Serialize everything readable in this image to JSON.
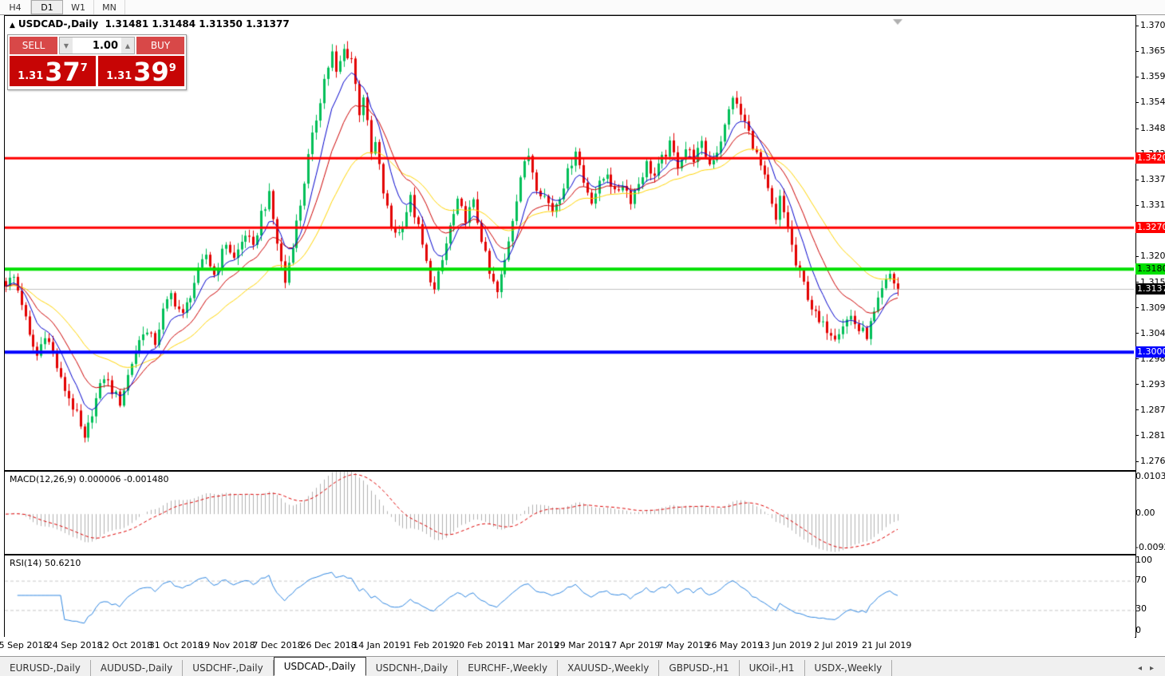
{
  "toolbar": {
    "timeframes": [
      {
        "label": "H4",
        "active": false
      },
      {
        "label": "D1",
        "active": true
      },
      {
        "label": "W1",
        "active": false
      },
      {
        "label": "MN",
        "active": false
      }
    ]
  },
  "header": {
    "collapse_marker": "▲",
    "symbol_title": "USDCAD-,Daily",
    "quotes": "1.31481 1.31484 1.31350 1.31377"
  },
  "trade_panel": {
    "sell_label": "SELL",
    "buy_label": "BUY",
    "volume": "1.00",
    "spinner_down": "▼",
    "spinner_up": "▲",
    "sell_price": {
      "small": "1.31",
      "big": "37",
      "sup": "7"
    },
    "buy_price": {
      "small": "1.31",
      "big": "39",
      "sup": "9"
    }
  },
  "price_axis": {
    "ticks": [
      "1.37085",
      "1.36530",
      "1.35975",
      "1.35420",
      "1.34850",
      "1.34295",
      "1.33740",
      "1.33185",
      "1.32630",
      "1.32075",
      "1.31520",
      "1.30965",
      "1.30410",
      "1.29855",
      "1.29300",
      "1.28745",
      "1.28190",
      "1.27635"
    ],
    "levels": [
      {
        "label": "1.34206",
        "price": 1.34206,
        "color": "#ff0000",
        "text": "#fff",
        "line_width": 3
      },
      {
        "label": "1.32701",
        "price": 1.32701,
        "color": "#ff0000",
        "text": "#fff",
        "line_width": 3
      },
      {
        "label": "1.31801",
        "price": 1.31801,
        "color": "#00e000",
        "text": "#000",
        "line_width": 4
      },
      {
        "label": "1.30004",
        "price": 1.30004,
        "color": "#0000ff",
        "text": "#fff",
        "line_width": 4
      }
    ],
    "current": {
      "label": "1.31377",
      "price": 1.31377,
      "line_color": "#c0c0c0",
      "bg": "#000",
      "text": "#fff"
    }
  },
  "macd_panel": {
    "label": "MACD(12,26,9) 0.000006 -0.001480",
    "axis": [
      {
        "label": "0.010311",
        "value": 0.010311
      },
      {
        "label": "0.00",
        "value": 0
      },
      {
        "label": "-0.009203",
        "value": -0.009203
      }
    ],
    "vmax": 0.011,
    "vmin": -0.0099,
    "histogram_color": "#b0b0b0",
    "signal_color": "#dd0000"
  },
  "rsi_panel": {
    "label": "RSI(14) 50.6210",
    "axis": [
      {
        "label": "100",
        "value": 100
      },
      {
        "label": "70",
        "value": 70
      },
      {
        "label": "30",
        "value": 30
      },
      {
        "label": "0",
        "value": 0
      }
    ],
    "dashed_levels": [
      70,
      30
    ],
    "line_color": "#2f86e0",
    "level_color": "#c8c8c8"
  },
  "date_axis": {
    "labels": [
      "5 Sep 2018",
      "24 Sep 2018",
      "12 Oct 2018",
      "31 Oct 2018",
      "19 Nov 2018",
      "7 Dec 2018",
      "26 Dec 2018",
      "14 Jan 2019",
      "1 Feb 2019",
      "20 Feb 2019",
      "11 Mar 2019",
      "29 Mar 2019",
      "17 Apr 2019",
      "7 May 2019",
      "26 May 2019",
      "13 Jun 2019",
      "2 Jul 2019",
      "21 Jul 2019"
    ]
  },
  "tabs": {
    "items": [
      {
        "label": "EURUSD-,Daily",
        "active": false
      },
      {
        "label": "AUDUSD-,Daily",
        "active": false
      },
      {
        "label": "USDCHF-,Daily",
        "active": false
      },
      {
        "label": "USDCAD-,Daily",
        "active": true
      },
      {
        "label": "USDCNH-,Daily",
        "active": false
      },
      {
        "label": "EURCHF-,Weekly",
        "active": false
      },
      {
        "label": "XAUUSD-,Weekly",
        "active": false
      },
      {
        "label": "GBPUSD-,H1",
        "active": false
      },
      {
        "label": "UKOil-,H1",
        "active": false
      },
      {
        "label": "USDX-,Weekly",
        "active": false
      }
    ],
    "scroll_left": "◂",
    "scroll_right": "▸"
  },
  "chart_data": {
    "type": "candlestick",
    "symbol": "USDCAD-",
    "timeframe": "Daily",
    "last_ohlc": {
      "open": 1.31481,
      "high": 1.31484,
      "low": 1.3135,
      "close": 1.31377
    },
    "bid": 1.31377,
    "ask": 1.31399,
    "last_close": 1.31377,
    "candle_count": 228,
    "price_max_top": 1.37293,
    "price_min_bottom": 1.2748,
    "colors": {
      "up": "#00bf58",
      "down": "#e30000",
      "shift_marker": "#b0b0b0"
    },
    "moving_averages": [
      {
        "period": 8,
        "color": "#0000cc",
        "name": "fast-ema-blue"
      },
      {
        "period": 16,
        "color": "#cc0000",
        "name": "mid-ema-red"
      },
      {
        "period": 34,
        "color": "#ffd400",
        "name": "slow-ema-yellow"
      }
    ],
    "close_waypoints": [
      [
        0,
        1.315
      ],
      [
        2,
        1.3162
      ],
      [
        4,
        1.3108
      ],
      [
        6,
        1.3032
      ],
      [
        8,
        1.2992
      ],
      [
        10,
        1.3042
      ],
      [
        12,
        1.2998
      ],
      [
        14,
        1.2938
      ],
      [
        16,
        1.2902
      ],
      [
        18,
        1.2862
      ],
      [
        20,
        1.2806
      ],
      [
        22,
        1.2872
      ],
      [
        25,
        1.2948
      ],
      [
        27,
        1.2918
      ],
      [
        29,
        1.2892
      ],
      [
        32,
        1.2978
      ],
      [
        35,
        1.3048
      ],
      [
        38,
        1.3022
      ],
      [
        40,
        1.3088
      ],
      [
        42,
        1.3125
      ],
      [
        45,
        1.3078
      ],
      [
        48,
        1.3152
      ],
      [
        51,
        1.3212
      ],
      [
        53,
        1.3168
      ],
      [
        56,
        1.3238
      ],
      [
        58,
        1.3202
      ],
      [
        61,
        1.3258
      ],
      [
        63,
        1.3222
      ],
      [
        65,
        1.3302
      ],
      [
        67,
        1.3338
      ],
      [
        69,
        1.3238
      ],
      [
        71,
        1.3152
      ],
      [
        73,
        1.3238
      ],
      [
        75,
        1.3322
      ],
      [
        77,
        1.3422
      ],
      [
        79,
        1.3508
      ],
      [
        81,
        1.3592
      ],
      [
        83,
        1.3648
      ],
      [
        84,
        1.3602
      ],
      [
        86,
        1.3655
      ],
      [
        88,
        1.3638
      ],
      [
        90,
        1.3522
      ],
      [
        91,
        1.3558
      ],
      [
        93,
        1.3428
      ],
      [
        94,
        1.3452
      ],
      [
        96,
        1.3348
      ],
      [
        98,
        1.3272
      ],
      [
        100,
        1.3258
      ],
      [
        103,
        1.3332
      ],
      [
        105,
        1.3268
      ],
      [
        107,
        1.3192
      ],
      [
        109,
        1.3132
      ],
      [
        111,
        1.3198
      ],
      [
        113,
        1.3272
      ],
      [
        115,
        1.3322
      ],
      [
        117,
        1.3292
      ],
      [
        119,
        1.3322
      ],
      [
        121,
        1.3248
      ],
      [
        123,
        1.3168
      ],
      [
        125,
        1.3128
      ],
      [
        127,
        1.3198
      ],
      [
        129,
        1.3292
      ],
      [
        131,
        1.3382
      ],
      [
        133,
        1.3428
      ],
      [
        135,
        1.3362
      ],
      [
        137,
        1.3338
      ],
      [
        139,
        1.3308
      ],
      [
        141,
        1.3342
      ],
      [
        143,
        1.3388
      ],
      [
        145,
        1.3442
      ],
      [
        147,
        1.3368
      ],
      [
        149,
        1.3332
      ],
      [
        151,
        1.3362
      ],
      [
        153,
        1.3392
      ],
      [
        155,
        1.3342
      ],
      [
        157,
        1.3368
      ],
      [
        159,
        1.3332
      ],
      [
        161,
        1.3368
      ],
      [
        163,
        1.3408
      ],
      [
        165,
        1.3382
      ],
      [
        167,
        1.3418
      ],
      [
        169,
        1.3448
      ],
      [
        171,
        1.3408
      ],
      [
        173,
        1.3442
      ],
      [
        175,
        1.3422
      ],
      [
        177,
        1.3448
      ],
      [
        179,
        1.3408
      ],
      [
        181,
        1.3438
      ],
      [
        183,
        1.3488
      ],
      [
        185,
        1.3558
      ],
      [
        186,
        1.3532
      ],
      [
        188,
        1.3498
      ],
      [
        190,
        1.3452
      ],
      [
        192,
        1.3402
      ],
      [
        194,
        1.3348
      ],
      [
        196,
        1.3282
      ],
      [
        197,
        1.3332
      ],
      [
        199,
        1.3272
      ],
      [
        201,
        1.3188
      ],
      [
        203,
        1.3148
      ],
      [
        205,
        1.3098
      ],
      [
        207,
        1.3062
      ],
      [
        209,
        1.3052
      ],
      [
        211,
        1.3038
      ],
      [
        213,
        1.3062
      ],
      [
        215,
        1.3078
      ],
      [
        217,
        1.3048
      ],
      [
        219,
        1.3038
      ],
      [
        221,
        1.3082
      ],
      [
        223,
        1.3132
      ],
      [
        225,
        1.3168
      ],
      [
        226,
        1.3152
      ],
      [
        227,
        1.31377
      ]
    ]
  }
}
